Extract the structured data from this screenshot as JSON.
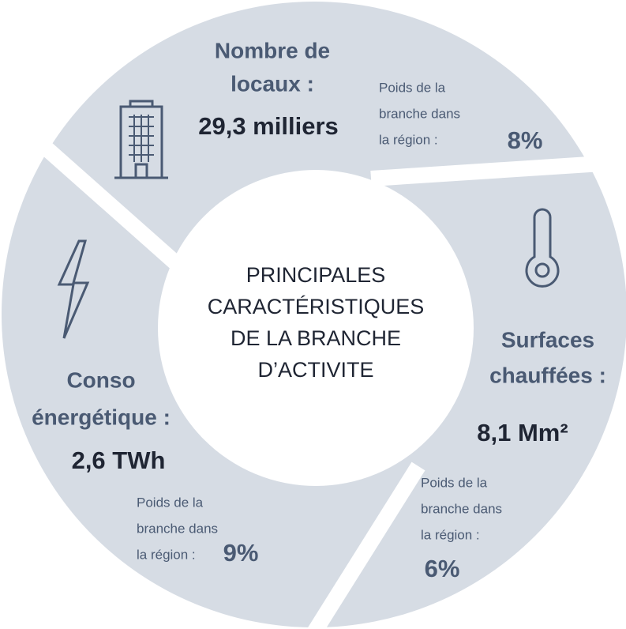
{
  "center": {
    "lines": [
      "PRINCIPALES",
      "CARACTÉRISTIQUES",
      "DE LA BRANCHE",
      "D’ACTIVITE"
    ]
  },
  "segments": [
    {
      "title": [
        "Nombre de",
        "locaux :"
      ],
      "value": "29,3 milliers",
      "weight_label": [
        "Poids de la",
        "branche dans",
        "la région :"
      ],
      "weight": "8%"
    },
    {
      "title": [
        "Surfaces",
        "chauffées :"
      ],
      "value": "8,1 Mm²",
      "weight_label": [
        "Poids de la",
        "branche dans",
        "la région :"
      ],
      "weight": "6%"
    },
    {
      "title": [
        "Conso",
        "énergétique :"
      ],
      "value": "2,6 TWh",
      "weight_label": [
        "Poids de la",
        "branche dans",
        "la région :"
      ],
      "weight": "9%"
    }
  ]
}
